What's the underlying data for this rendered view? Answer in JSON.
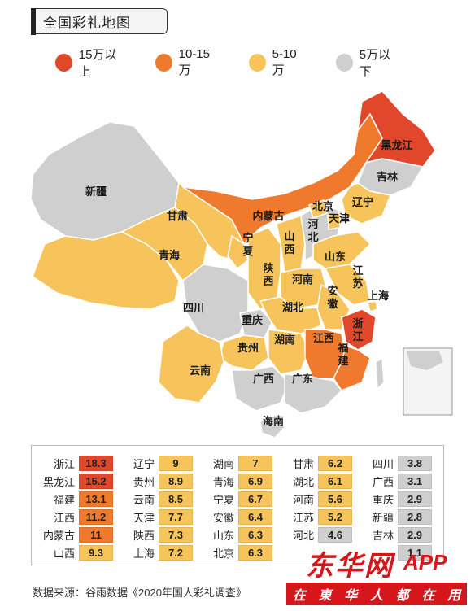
{
  "title": "全国彩礼地图",
  "legend": [
    {
      "label": "15万以上",
      "color": "#e0472b"
    },
    {
      "label": "10-15万",
      "color": "#ef7a2e"
    },
    {
      "label": "5-10万",
      "color": "#f6c45a"
    },
    {
      "label": "5万以下",
      "color": "#cfcfcf"
    }
  ],
  "map_labels": {
    "xinjiang": "新疆",
    "heilongjiang": "黑龙江",
    "jilin": "吉林",
    "liaoning": "辽宁",
    "neimenggu": "内蒙古",
    "beijing": "北京",
    "tianjin": "天津",
    "hebei": "河北",
    "gansu": "甘肃",
    "ningxia": "宁夏",
    "shanxi": "山西",
    "shandong": "山东",
    "qinghai": "青海",
    "shaanxi": "陕西",
    "henan": "河南",
    "jiangsu": "江苏",
    "anhui": "安徽",
    "shanghai": "上海",
    "sichuan": "四川",
    "hubei": "湖北",
    "chongqing": "重庆",
    "zhejiang": "浙江",
    "guizhou": "贵州",
    "hunan": "湖南",
    "jiangxi": "江西",
    "fujian": "福建",
    "yunnan": "云南",
    "guangxi": "广西",
    "guangdong": "广东",
    "hainan": "海南"
  },
  "table": [
    {
      "name": "浙江",
      "value": "18.3",
      "tier": 0
    },
    {
      "name": "辽宁",
      "value": "9",
      "tier": 2
    },
    {
      "name": "湖南",
      "value": "7",
      "tier": 2
    },
    {
      "name": "甘肃",
      "value": "6.2",
      "tier": 2
    },
    {
      "name": "四川",
      "value": "3.8",
      "tier": 3
    },
    {
      "name": "黑龙江",
      "value": "15.2",
      "tier": 0
    },
    {
      "name": "贵州",
      "value": "8.9",
      "tier": 2
    },
    {
      "name": "青海",
      "value": "6.9",
      "tier": 2
    },
    {
      "name": "湖北",
      "value": "6.1",
      "tier": 2
    },
    {
      "name": "广西",
      "value": "3.1",
      "tier": 3
    },
    {
      "name": "福建",
      "value": "13.1",
      "tier": 1
    },
    {
      "name": "云南",
      "value": "8.5",
      "tier": 2
    },
    {
      "name": "宁夏",
      "value": "6.7",
      "tier": 2
    },
    {
      "name": "河南",
      "value": "5.6",
      "tier": 2
    },
    {
      "name": "重庆",
      "value": "2.9",
      "tier": 3
    },
    {
      "name": "江西",
      "value": "11.2",
      "tier": 1
    },
    {
      "name": "天津",
      "value": "7.7",
      "tier": 2
    },
    {
      "name": "安徽",
      "value": "6.4",
      "tier": 2
    },
    {
      "name": "江苏",
      "value": "5.2",
      "tier": 2
    },
    {
      "name": "新疆",
      "value": "2.8",
      "tier": 3
    },
    {
      "name": "内蒙古",
      "value": "11",
      "tier": 1
    },
    {
      "name": "陕西",
      "value": "7.3",
      "tier": 2
    },
    {
      "name": "山东",
      "value": "6.3",
      "tier": 2
    },
    {
      "name": "河北",
      "value": "4.6",
      "tier": 3
    },
    {
      "name": "吉林",
      "value": "2.9",
      "tier": 3
    },
    {
      "name": "山西",
      "value": "9.3",
      "tier": 2
    },
    {
      "name": "上海",
      "value": "7.2",
      "tier": 2
    },
    {
      "name": "北京",
      "value": "6.3",
      "tier": 2
    },
    {
      "name": "",
      "value": "",
      "tier": -1
    },
    {
      "name": "",
      "value": "1.1",
      "tier": 3
    }
  ],
  "source": "数据来源：谷雨数据《2020年国人彩礼调查》",
  "watermark": {
    "main": "东华网",
    "app": "APP",
    "sub": [
      "在",
      "東",
      "华",
      "人",
      "都",
      "在",
      "用"
    ]
  }
}
